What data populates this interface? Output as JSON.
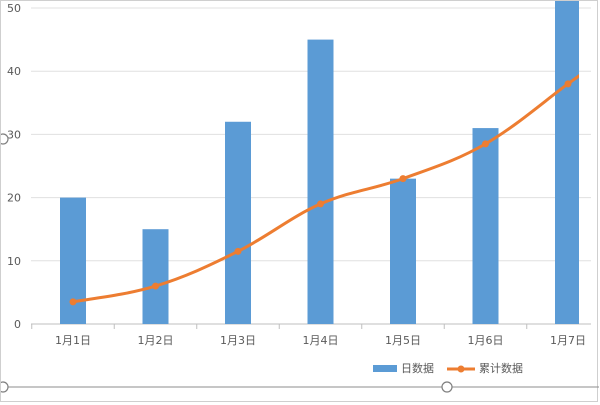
{
  "chart_data": {
    "type": "bar",
    "categories": [
      "1月1日",
      "1月2日",
      "1月3日",
      "1月4日",
      "1月5日",
      "1月6日",
      "1月7日"
    ],
    "series": [
      {
        "name": "日数据",
        "type": "bar",
        "color": "#5B9BD5",
        "values": [
          20,
          15,
          32,
          45,
          23,
          31,
          52
        ]
      },
      {
        "name": "累计数据",
        "type": "line",
        "color": "#ED7D31",
        "values": [
          3.5,
          6,
          11.5,
          19,
          23,
          28.5,
          38
        ]
      }
    ],
    "yticks": [
      "0",
      "10",
      "20",
      "30",
      "40",
      "50"
    ],
    "ylim": [
      0,
      50
    ],
    "grid": true,
    "legend": "bottom-right"
  }
}
